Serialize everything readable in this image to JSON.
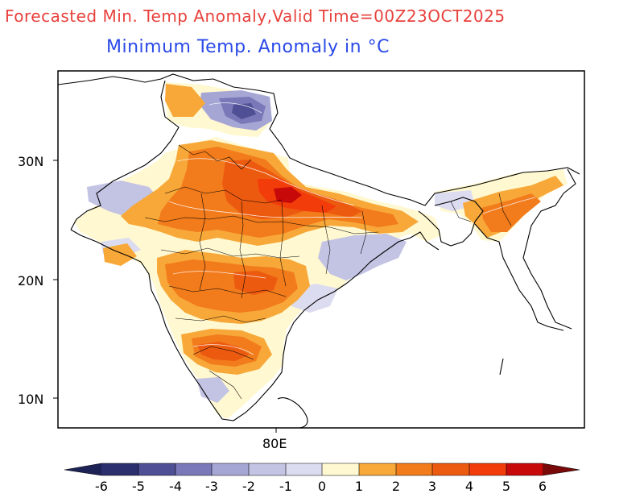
{
  "header": {
    "title": "Forecasted Min. Temp Anomaly,Valid Time=00Z23OCT2025",
    "subtitle": "Minimum Temp. Anomaly in °C"
  },
  "axes": {
    "lat_ticks": [
      "30N",
      "20N",
      "10N"
    ],
    "lon_ticks": [
      "80E"
    ]
  },
  "colorbar": {
    "levels": [
      "-6",
      "-5",
      "-4",
      "-3",
      "-2",
      "-1",
      "0",
      "1",
      "2",
      "3",
      "4",
      "5",
      "6"
    ],
    "colors": [
      "#2b2f6e",
      "#4f4f95",
      "#7a78b8",
      "#a6a6d5",
      "#c3c3e4",
      "#dcdcf1",
      "#fff8d0",
      "#f7a838",
      "#f27b1c",
      "#ec5a10",
      "#f23c0a",
      "#c70909",
      "#7a0a0a"
    ]
  }
}
